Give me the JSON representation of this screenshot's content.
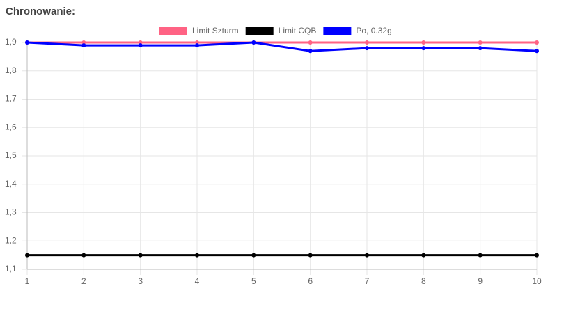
{
  "chart_data": {
    "type": "line",
    "title": "Chronowanie:",
    "x": [
      1,
      2,
      3,
      4,
      5,
      6,
      7,
      8,
      9,
      10
    ],
    "xlim": [
      1,
      10
    ],
    "xticks": [
      1,
      2,
      3,
      4,
      5,
      6,
      7,
      8,
      9,
      10
    ],
    "ylim": [
      1.1,
      1.9
    ],
    "yticks": [
      {
        "value": 1.1,
        "label": "1,1"
      },
      {
        "value": 1.2,
        "label": "1,2"
      },
      {
        "value": 1.3,
        "label": "1,3"
      },
      {
        "value": 1.4,
        "label": "1,4"
      },
      {
        "value": 1.5,
        "label": "1,5"
      },
      {
        "value": 1.6,
        "label": "1,6"
      },
      {
        "value": 1.7,
        "label": "1,7"
      },
      {
        "value": 1.8,
        "label": "1,8"
      },
      {
        "value": 1.9,
        "label": "1,9"
      }
    ],
    "grid": true,
    "legend": "top",
    "series": [
      {
        "name": "Limit Szturm",
        "color": "#ff6384",
        "values": [
          1.9,
          1.9,
          1.9,
          1.9,
          1.9,
          1.9,
          1.9,
          1.9,
          1.9,
          1.9
        ]
      },
      {
        "name": "Limit CQB",
        "color": "#000000",
        "values": [
          1.15,
          1.15,
          1.15,
          1.15,
          1.15,
          1.15,
          1.15,
          1.15,
          1.15,
          1.15
        ]
      },
      {
        "name": "Po, 0.32g",
        "color": "#0000ff",
        "values": [
          1.9,
          1.89,
          1.89,
          1.89,
          1.9,
          1.87,
          1.88,
          1.88,
          1.88,
          1.87
        ]
      }
    ]
  }
}
